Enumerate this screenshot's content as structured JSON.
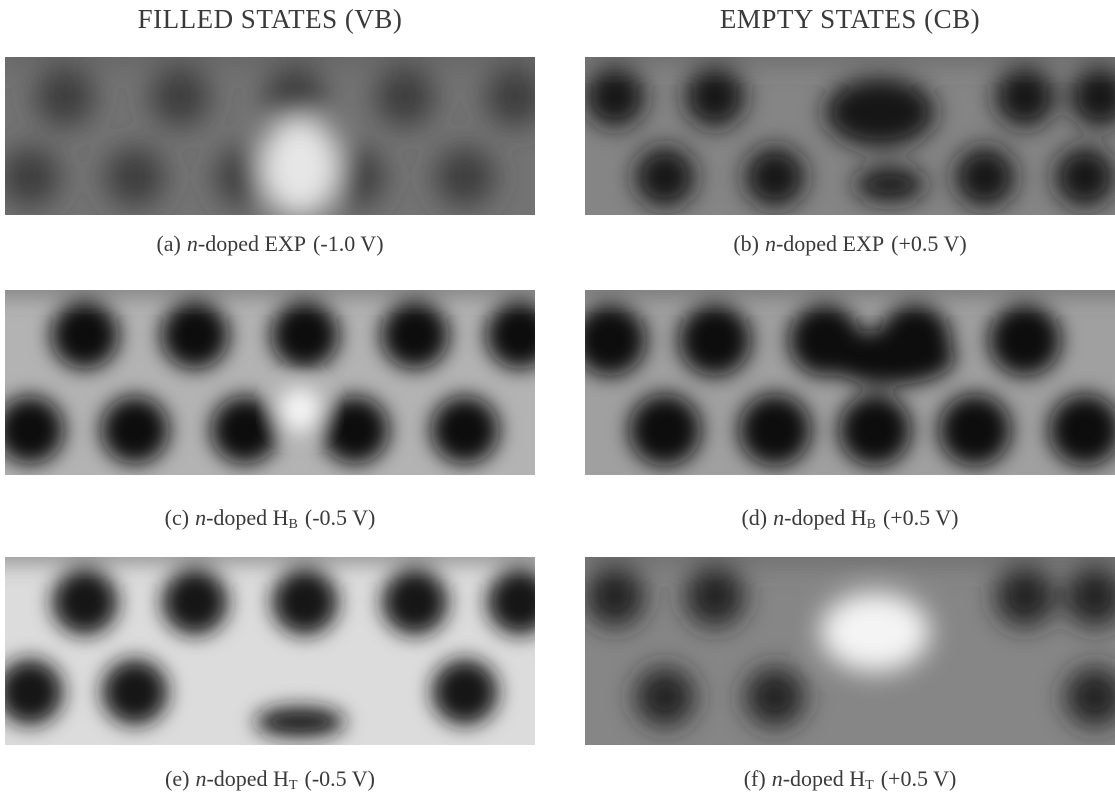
{
  "headers": {
    "left": "FILLED STATES (VB)",
    "right": "EMPTY STATES (CB)"
  },
  "panels": [
    {
      "label": "(a)",
      "doping": "n",
      "name": "-doped EXP",
      "voltage": "(-1.0 V)"
    },
    {
      "label": "(b)",
      "doping": "n",
      "name": "-doped EXP",
      "voltage": "(+0.5 V)"
    },
    {
      "label": "(c)",
      "doping": "n",
      "name": "-doped H",
      "subscript": "B",
      "voltage": "(-0.5 V)"
    },
    {
      "label": "(d)",
      "doping": "n",
      "name": "-doped H",
      "subscript": "B",
      "voltage": "(+0.5 V)"
    },
    {
      "label": "(e)",
      "doping": "n",
      "name": "-doped H",
      "subscript": "T",
      "voltage": "(-0.5 V)"
    },
    {
      "label": "(f)",
      "doping": "n",
      "name": "-doped H",
      "subscript": "T",
      "voltage": "(+0.5 V)"
    }
  ]
}
